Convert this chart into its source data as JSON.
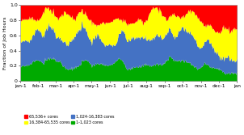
{
  "title": "",
  "ylabel": "Fraction of Job Hours",
  "xlabel": "",
  "xlim": [
    0,
    365
  ],
  "ylim": [
    0,
    1
  ],
  "yticks": [
    0,
    0.2,
    0.4,
    0.6,
    0.8,
    1.0
  ],
  "xtick_labels": [
    "jan-1",
    "feb-1",
    "mar-1",
    "apr-1",
    "may-1",
    "jun-1",
    "jul-1",
    "aug-1",
    "sep-1",
    "oct-1",
    "nov-1",
    "dec-1",
    "jan"
  ],
  "xtick_positions": [
    0,
    31,
    59,
    90,
    120,
    151,
    181,
    212,
    243,
    273,
    304,
    334,
    365
  ],
  "legend": [
    {
      "label": "65,536+ cores",
      "color": "#FF0000"
    },
    {
      "label": "16,384-65,535 cores",
      "color": "#FFFF00"
    },
    {
      "label": "1,024-16,383 cores",
      "color": "#4472C4"
    },
    {
      "label": "1-1,023 cores",
      "color": "#00AA00"
    }
  ],
  "background_color": "#FFFFFF",
  "colors": [
    "#00AA00",
    "#4472C4",
    "#FFFF00",
    "#FF0000"
  ],
  "figsize": [
    3.02,
    1.67
  ],
  "dpi": 100
}
